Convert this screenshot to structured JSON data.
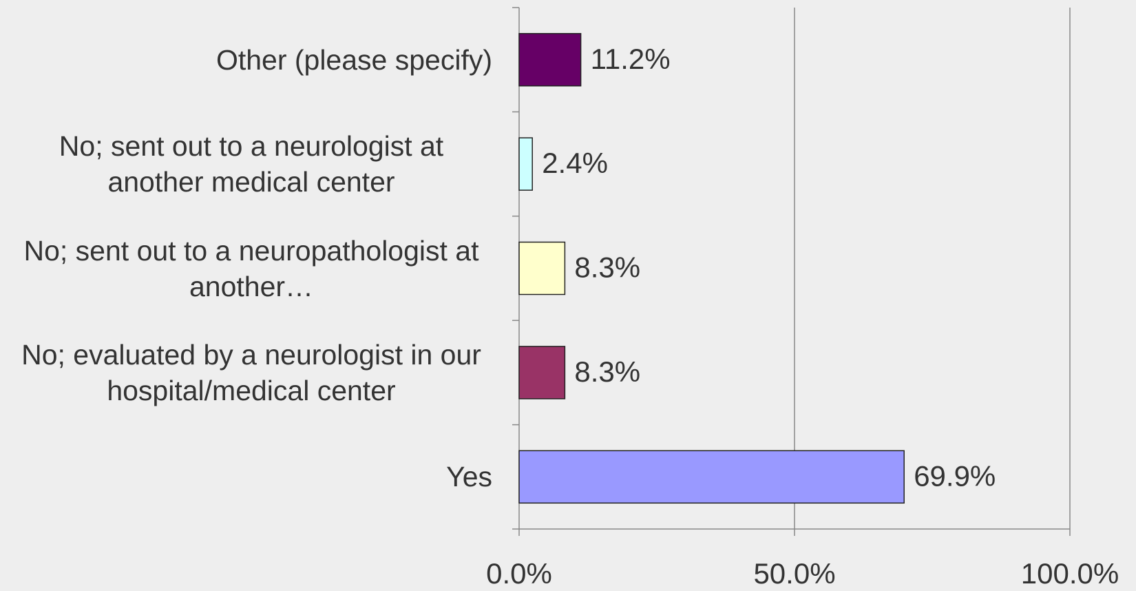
{
  "chart_data": {
    "type": "bar",
    "orientation": "horizontal",
    "categories": [
      "Other (please specify)",
      "No; sent out to a neurologist at another medical center",
      "No; sent out to a neuropathologist at another…",
      "No; evaluated by a neurologist in our hospital/medical center",
      "Yes"
    ],
    "values": [
      11.2,
      2.4,
      8.3,
      8.3,
      69.9
    ],
    "value_labels": [
      "11.2%",
      "2.4%",
      "8.3%",
      "8.3%",
      "69.9%"
    ],
    "colors": [
      "#660066",
      "#ccffff",
      "#ffffcc",
      "#993366",
      "#9999ff"
    ],
    "xlim": [
      0,
      100
    ],
    "xticks": [
      {
        "value": 0,
        "label": "0.0%"
      },
      {
        "value": 50,
        "label": "50.0%"
      },
      {
        "value": 100,
        "label": "100.0%"
      }
    ],
    "grid": true
  }
}
